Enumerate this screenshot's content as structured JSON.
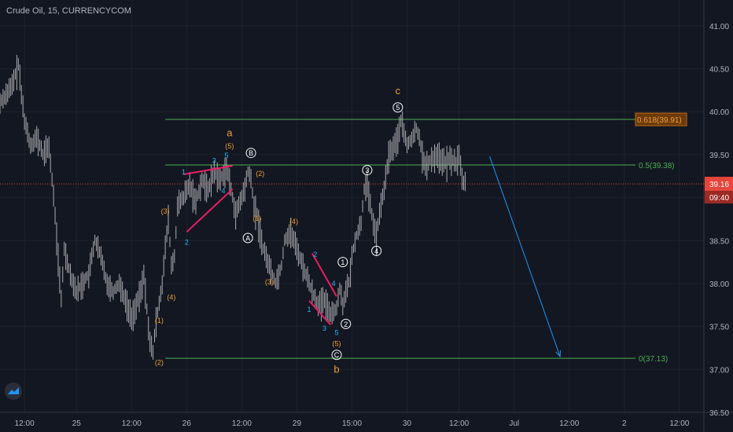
{
  "header": {
    "title": "Crude Oil, 15, CURRENCYCOM"
  },
  "chart_data": {
    "type": "line",
    "title": "Crude Oil, 15, CURRENCYCOM",
    "ylim": [
      36.5,
      41.3
    ],
    "y_ticks": [
      "41.00",
      "40.50",
      "40.00",
      "39.50",
      "39.00",
      "38.50",
      "38.00",
      "37.50",
      "37.00",
      "36.50"
    ],
    "y_tick_values": [
      41.0,
      40.5,
      40.0,
      39.5,
      39.0,
      38.5,
      38.0,
      37.5,
      37.0,
      36.5
    ],
    "x_ticks": [
      "12:00",
      "25",
      "12:00",
      "26",
      "12:00",
      "29",
      "15:00",
      "30",
      "12:00",
      "Jul",
      "12:00",
      "2",
      "12:00"
    ],
    "x_tick_index": [
      8,
      25,
      43,
      61,
      79,
      97,
      115,
      133,
      150,
      168,
      186,
      204,
      222
    ],
    "x_count": 230,
    "price_series": [
      [
        0,
        40.1
      ],
      [
        2,
        40.2
      ],
      [
        4,
        40.3
      ],
      [
        6,
        40.55
      ],
      [
        7,
        40.2
      ],
      [
        8,
        39.9
      ],
      [
        10,
        39.6
      ],
      [
        12,
        39.7
      ],
      [
        14,
        39.5
      ],
      [
        16,
        39.6
      ],
      [
        17,
        39.2
      ],
      [
        18,
        38.8
      ],
      [
        19,
        38.3
      ],
      [
        20,
        37.8
      ],
      [
        21,
        38.4
      ],
      [
        23,
        38.1
      ],
      [
        25,
        37.9
      ],
      [
        27,
        38.0
      ],
      [
        29,
        38.1
      ],
      [
        31,
        38.5
      ],
      [
        33,
        38.3
      ],
      [
        35,
        38.0
      ],
      [
        37,
        37.9
      ],
      [
        39,
        38.0
      ],
      [
        41,
        37.8
      ],
      [
        43,
        37.6
      ],
      [
        45,
        37.8
      ],
      [
        46,
        37.9
      ],
      [
        47,
        38.1
      ],
      [
        48,
        37.7
      ],
      [
        49,
        37.3
      ],
      [
        50,
        37.2
      ],
      [
        51,
        37.55
      ],
      [
        53,
        38.0
      ],
      [
        54,
        38.4
      ],
      [
        55,
        38.75
      ],
      [
        56,
        38.2
      ],
      [
        57,
        38.3
      ],
      [
        58,
        38.9
      ],
      [
        60,
        39.0
      ],
      [
        62,
        39.15
      ],
      [
        64,
        38.95
      ],
      [
        66,
        39.2
      ],
      [
        68,
        39.1
      ],
      [
        70,
        39.3
      ],
      [
        72,
        39.2
      ],
      [
        74,
        39.35
      ],
      [
        76,
        39.0
      ],
      [
        77,
        38.8
      ],
      [
        78,
        38.9
      ],
      [
        80,
        39.1
      ],
      [
        81,
        39.3
      ],
      [
        82,
        39.2
      ],
      [
        83,
        38.9
      ],
      [
        84,
        38.8
      ],
      [
        85,
        38.6
      ],
      [
        86,
        38.4
      ],
      [
        88,
        38.2
      ],
      [
        90,
        38.0
      ],
      [
        92,
        38.2
      ],
      [
        93,
        38.5
      ],
      [
        95,
        38.6
      ],
      [
        96,
        38.5
      ],
      [
        98,
        38.3
      ],
      [
        100,
        38.1
      ],
      [
        102,
        37.9
      ],
      [
        104,
        37.75
      ],
      [
        106,
        37.8
      ],
      [
        108,
        37.65
      ],
      [
        110,
        37.7
      ],
      [
        111,
        37.95
      ],
      [
        112,
        37.75
      ],
      [
        113,
        37.9
      ],
      [
        114,
        38.0
      ],
      [
        115,
        38.3
      ],
      [
        116,
        38.5
      ],
      [
        118,
        38.7
      ],
      [
        119,
        39.1
      ],
      [
        120,
        39.15
      ],
      [
        121,
        38.9
      ],
      [
        122,
        38.7
      ],
      [
        123,
        38.55
      ],
      [
        124,
        38.8
      ],
      [
        125,
        39.0
      ],
      [
        126,
        39.2
      ],
      [
        127,
        39.5
      ],
      [
        128,
        39.55
      ],
      [
        130,
        39.7
      ],
      [
        131,
        39.9
      ],
      [
        132,
        39.75
      ],
      [
        133,
        39.6
      ],
      [
        135,
        39.7
      ],
      [
        136,
        39.8
      ],
      [
        137,
        39.7
      ],
      [
        138,
        39.5
      ],
      [
        139,
        39.35
      ],
      [
        141,
        39.45
      ],
      [
        143,
        39.5
      ],
      [
        145,
        39.4
      ],
      [
        147,
        39.45
      ],
      [
        149,
        39.4
      ],
      [
        150,
        39.5
      ],
      [
        151,
        39.2
      ],
      [
        152,
        39.16
      ]
    ],
    "horizontal_levels": [
      {
        "value": 39.91,
        "label": "0.618(39.91)",
        "color": "#4caf50",
        "from": 54
      },
      {
        "value": 39.38,
        "label": "0.5(39.38)",
        "color": "#4caf50",
        "from": 54
      },
      {
        "value": 37.13,
        "label": "0(37.13)",
        "color": "#4caf50",
        "from": 54
      }
    ],
    "current_price": {
      "value": 39.16,
      "label": "39.16",
      "countdown": "09:40",
      "color": "#e5453b"
    },
    "projection": {
      "from": [
        160,
        39.48
      ],
      "to": [
        183,
        37.15
      ],
      "color": "#2196f3"
    },
    "wedges": [
      {
        "points": [
          [
            60,
            39.27
          ],
          [
            76,
            39.37
          ]
        ],
        "color": "#e91e63"
      },
      {
        "points": [
          [
            61,
            38.6
          ],
          [
            76,
            39.1
          ]
        ],
        "color": "#e91e63"
      },
      {
        "points": [
          [
            102,
            38.35
          ],
          [
            110,
            37.85
          ]
        ],
        "color": "#e91e63"
      },
      {
        "points": [
          [
            101,
            37.8
          ],
          [
            108,
            37.52
          ]
        ],
        "color": "#e91e63"
      }
    ],
    "wave_labels": [
      {
        "x": 75,
        "y": 39.75,
        "text": "a",
        "style": "orange-big"
      },
      {
        "x": 75,
        "y": 39.6,
        "text": "(5)",
        "style": "orange"
      },
      {
        "x": 60,
        "y": 39.3,
        "text": "1",
        "style": "blue"
      },
      {
        "x": 61,
        "y": 38.48,
        "text": "2",
        "style": "blue"
      },
      {
        "x": 70,
        "y": 39.43,
        "text": "3",
        "style": "blue"
      },
      {
        "x": 73,
        "y": 39.08,
        "text": "4",
        "style": "blue"
      },
      {
        "x": 74,
        "y": 39.49,
        "text": "5",
        "style": "blue"
      },
      {
        "x": 54,
        "y": 38.84,
        "text": "(3)",
        "style": "orange"
      },
      {
        "x": 56,
        "y": 37.84,
        "text": "(4)",
        "style": "orange"
      },
      {
        "x": 52,
        "y": 37.57,
        "text": "(1)",
        "style": "orange"
      },
      {
        "x": 52,
        "y": 37.08,
        "text": "(2)",
        "style": "orange"
      },
      {
        "x": 82,
        "y": 39.52,
        "text": "B",
        "style": "circle"
      },
      {
        "x": 81,
        "y": 38.53,
        "text": "A",
        "style": "circle"
      },
      {
        "x": 85,
        "y": 39.28,
        "text": "(2)",
        "style": "orange"
      },
      {
        "x": 84,
        "y": 38.76,
        "text": "(1)",
        "style": "orange"
      },
      {
        "x": 96,
        "y": 38.72,
        "text": "(4)",
        "style": "orange"
      },
      {
        "x": 88,
        "y": 38.02,
        "text": "(3)",
        "style": "orange"
      },
      {
        "x": 103,
        "y": 38.34,
        "text": "2",
        "style": "blue"
      },
      {
        "x": 109,
        "y": 38.0,
        "text": "4",
        "style": "blue"
      },
      {
        "x": 101,
        "y": 37.7,
        "text": "1",
        "style": "blue"
      },
      {
        "x": 106,
        "y": 37.48,
        "text": "3",
        "style": "blue"
      },
      {
        "x": 110,
        "y": 37.43,
        "text": "5",
        "style": "blue"
      },
      {
        "x": 110,
        "y": 37.3,
        "text": "(5)",
        "style": "orange"
      },
      {
        "x": 110,
        "y": 37.17,
        "text": "C",
        "style": "circle"
      },
      {
        "x": 110,
        "y": 37.0,
        "text": "b",
        "style": "orange-big"
      },
      {
        "x": 112,
        "y": 38.25,
        "text": "1",
        "style": "circle"
      },
      {
        "x": 113,
        "y": 37.53,
        "text": "2",
        "style": "circle"
      },
      {
        "x": 120,
        "y": 39.32,
        "text": "3",
        "style": "circle"
      },
      {
        "x": 123,
        "y": 38.38,
        "text": "4",
        "style": "circle"
      },
      {
        "x": 130,
        "y": 40.05,
        "text": "5",
        "style": "circle"
      },
      {
        "x": 130,
        "y": 40.24,
        "text": "c",
        "style": "orange-big"
      }
    ]
  }
}
